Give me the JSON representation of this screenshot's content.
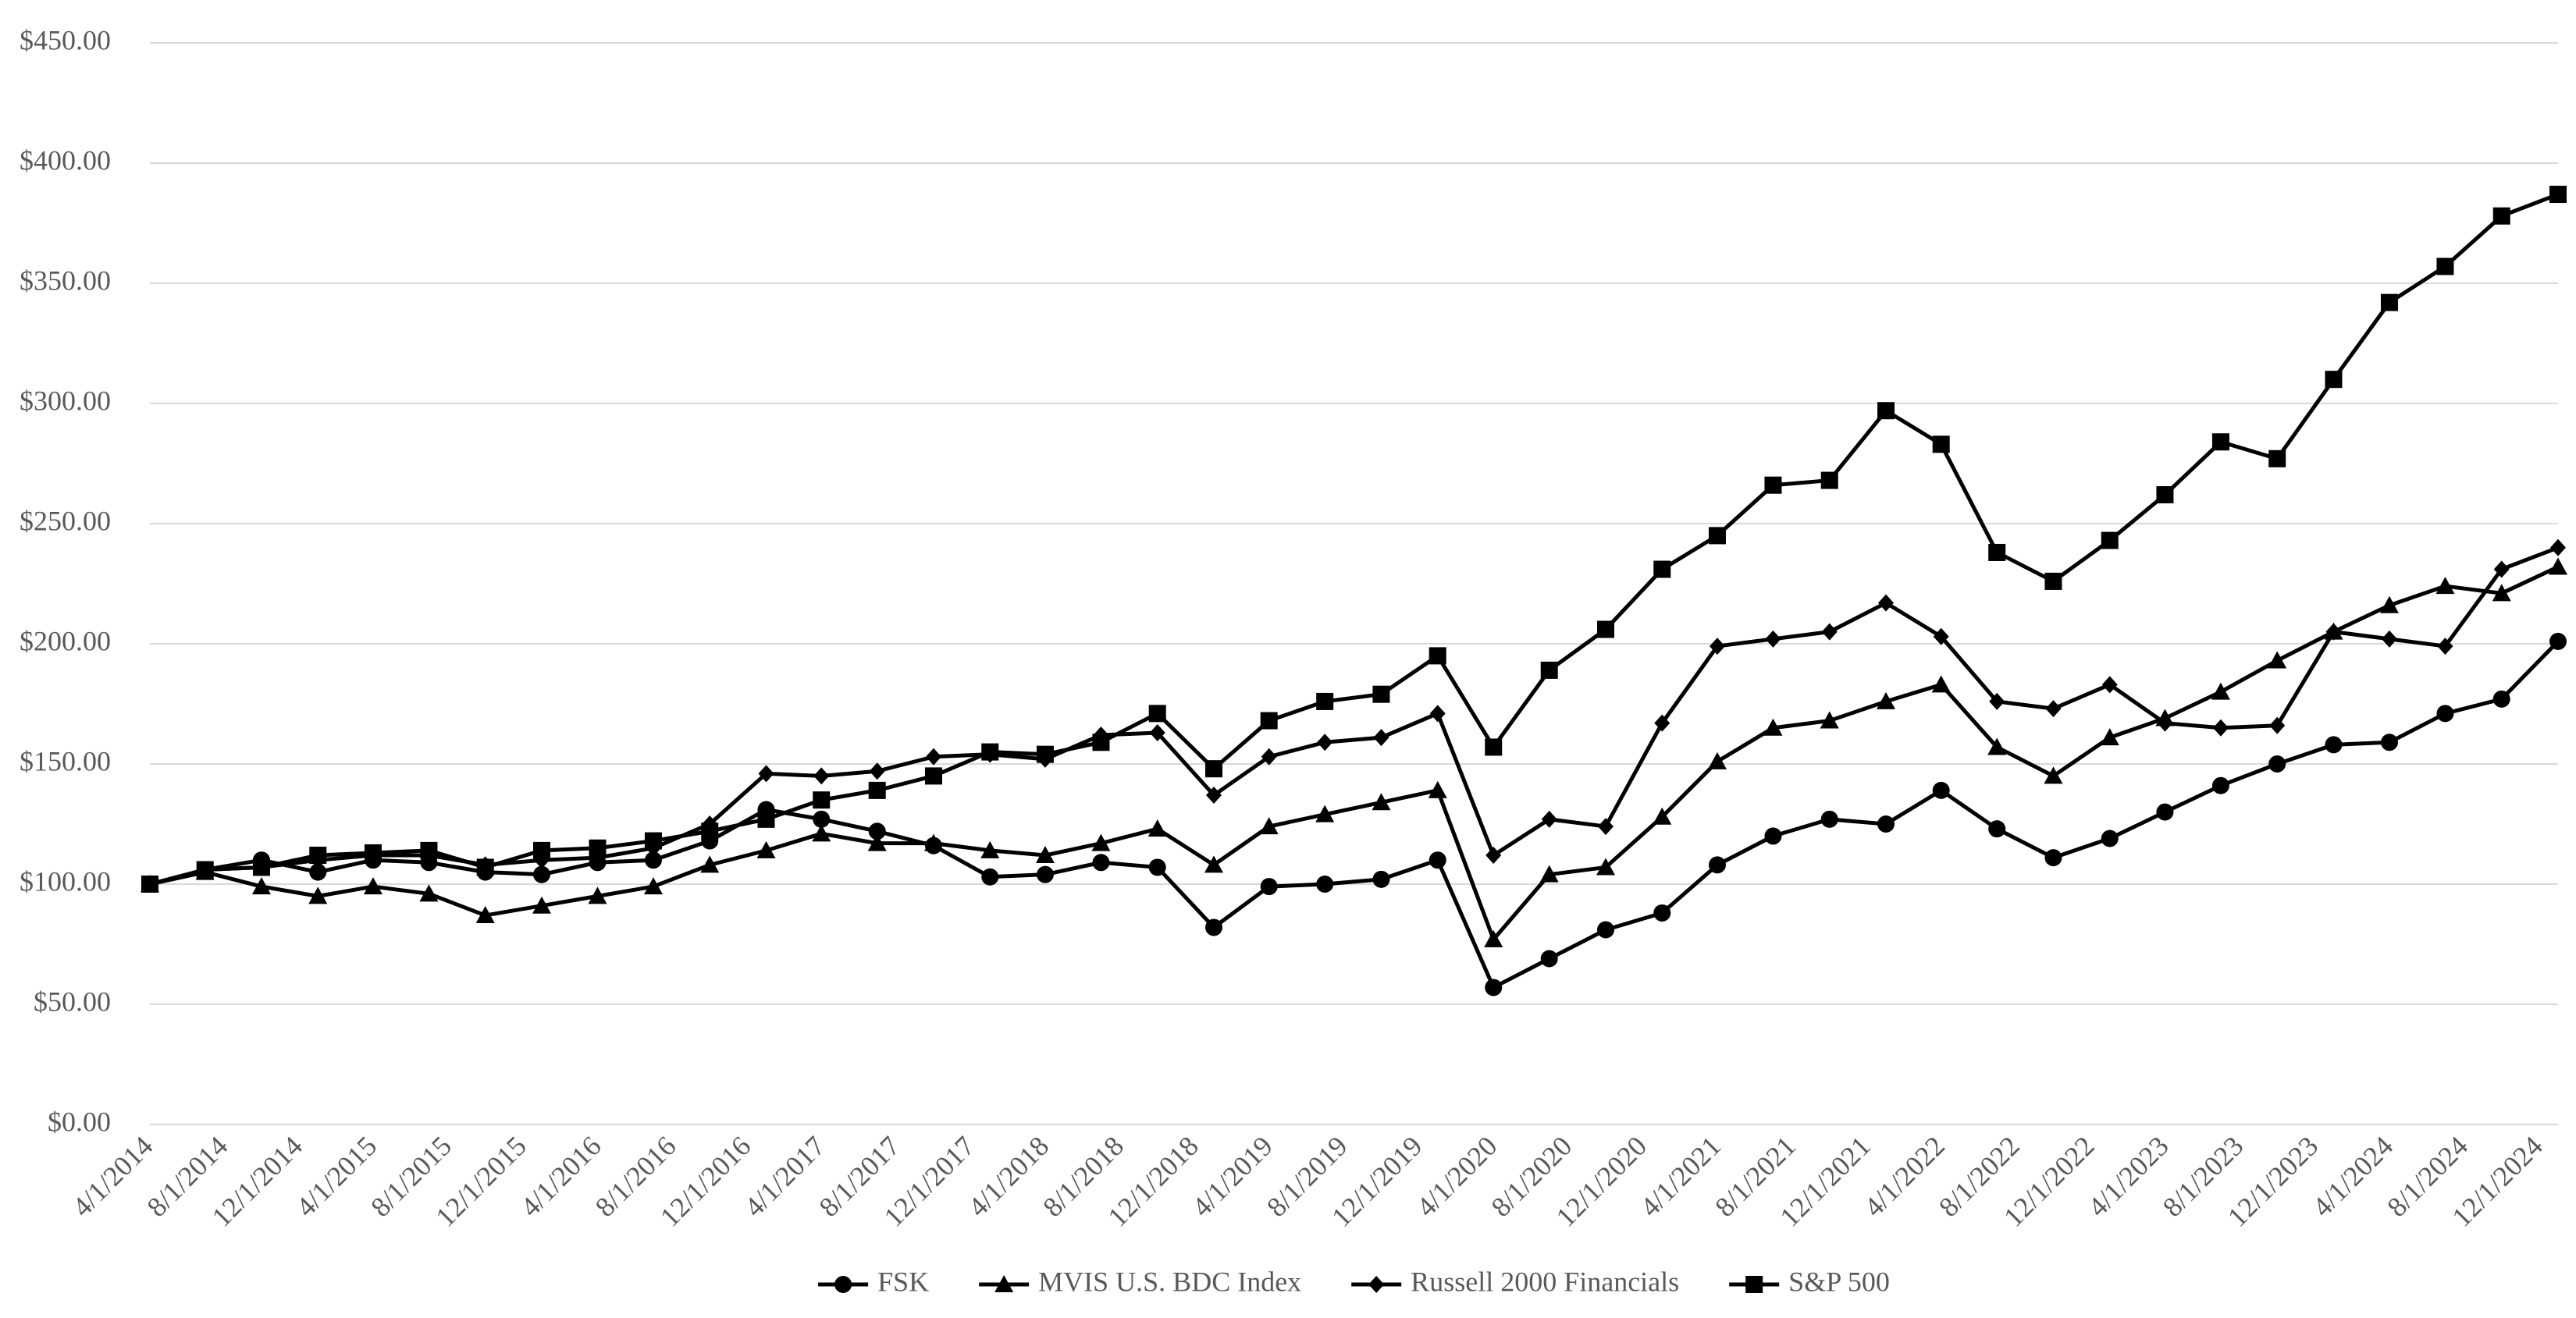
{
  "chart_data": {
    "type": "line",
    "x": [
      "4/1/2014",
      "6/30/2014",
      "9/30/2014",
      "12/31/2014",
      "3/31/2015",
      "6/30/2015",
      "9/30/2015",
      "12/31/2015",
      "3/31/2016",
      "6/30/2016",
      "9/30/2016",
      "12/31/2016",
      "3/31/2017",
      "6/30/2017",
      "9/30/2017",
      "12/31/2017",
      "3/31/2018",
      "6/30/2018",
      "9/30/2018",
      "12/31/2018",
      "3/31/2019",
      "6/30/2019",
      "9/30/2019",
      "12/31/2019",
      "3/31/2020",
      "6/30/2020",
      "9/30/2020",
      "12/31/2020",
      "3/31/2021",
      "6/30/2021",
      "9/30/2021",
      "12/31/2021",
      "3/31/2022",
      "6/30/2022",
      "9/30/2022",
      "12/31/2022",
      "3/31/2023",
      "6/30/2023",
      "9/30/2023",
      "12/31/2023",
      "3/31/2024",
      "6/30/2024",
      "9/30/2024",
      "12/31/2024"
    ],
    "xlim": [
      "4/1/2014",
      "12/31/2024"
    ],
    "xticks": [
      "4/1/2014",
      "8/1/2014",
      "12/1/2014",
      "4/1/2015",
      "8/1/2015",
      "12/1/2015",
      "4/1/2016",
      "8/1/2016",
      "12/1/2016",
      "4/1/2017",
      "8/1/2017",
      "12/1/2017",
      "4/1/2018",
      "8/1/2018",
      "12/1/2018",
      "4/1/2019",
      "8/1/2019",
      "12/1/2019",
      "4/1/2020",
      "8/1/2020",
      "12/1/2020",
      "4/1/2021",
      "8/1/2021",
      "12/1/2021",
      "4/1/2022",
      "8/1/2022",
      "12/1/2022",
      "4/1/2023",
      "8/1/2023",
      "12/1/2023",
      "4/1/2024",
      "8/1/2024",
      "12/1/2024"
    ],
    "ylim": [
      0,
      450
    ],
    "yticks": [
      {
        "value": 0,
        "label": "$0.00"
      },
      {
        "value": 50,
        "label": "$50.00"
      },
      {
        "value": 100,
        "label": "$100.00"
      },
      {
        "value": 150,
        "label": "$150.00"
      },
      {
        "value": 200,
        "label": "$200.00"
      },
      {
        "value": 250,
        "label": "$250.00"
      },
      {
        "value": 300,
        "label": "$300.00"
      },
      {
        "value": 350,
        "label": "$350.00"
      },
      {
        "value": 400,
        "label": "$400.00"
      },
      {
        "value": 450,
        "label": "$450.00"
      }
    ],
    "grid": true,
    "legend": "bottom",
    "series": [
      {
        "name": "FSK",
        "color": "#000000",
        "marker": "circle",
        "values": [
          100,
          106,
          110,
          105,
          110,
          109,
          105,
          104,
          109,
          110,
          118,
          131,
          127,
          122,
          116,
          103,
          104,
          109,
          107,
          82,
          99,
          100,
          102,
          110,
          57,
          69,
          81,
          88,
          108,
          120,
          127,
          125,
          139,
          123,
          111,
          119,
          130,
          141,
          150,
          158,
          159,
          171,
          177,
          201
        ]
      },
      {
        "name": "MVIS U.S. BDC Index",
        "color": "#000000",
        "marker": "triangle",
        "values": [
          100,
          105,
          99,
          95,
          99,
          96,
          87,
          91,
          95,
          99,
          108,
          114,
          121,
          117,
          117,
          114,
          112,
          117,
          123,
          108,
          124,
          129,
          134,
          139,
          77,
          104,
          107,
          128,
          151,
          165,
          168,
          176,
          183,
          157,
          145,
          161,
          169,
          180,
          193,
          205,
          216,
          224,
          221,
          232
        ]
      },
      {
        "name": "Russell 2000 Financials",
        "color": "#000000",
        "marker": "diamond",
        "values": [
          100,
          106,
          107,
          110,
          112,
          112,
          108,
          110,
          111,
          115,
          125,
          146,
          145,
          147,
          153,
          154,
          152,
          162,
          163,
          137,
          153,
          159,
          161,
          171,
          112,
          127,
          124,
          167,
          199,
          202,
          205,
          217,
          203,
          176,
          173,
          183,
          167,
          165,
          166,
          205,
          202,
          199,
          231,
          240
        ]
      },
      {
        "name": "S&P 500",
        "color": "#000000",
        "marker": "square",
        "values": [
          100,
          106,
          107,
          112,
          113,
          114,
          107,
          114,
          115,
          118,
          122,
          127,
          135,
          139,
          145,
          155,
          154,
          159,
          171,
          148,
          168,
          176,
          179,
          195,
          157,
          189,
          206,
          231,
          245,
          266,
          268,
          297,
          283,
          238,
          226,
          243,
          262,
          284,
          277,
          310,
          342,
          357,
          378,
          387
        ]
      }
    ]
  }
}
